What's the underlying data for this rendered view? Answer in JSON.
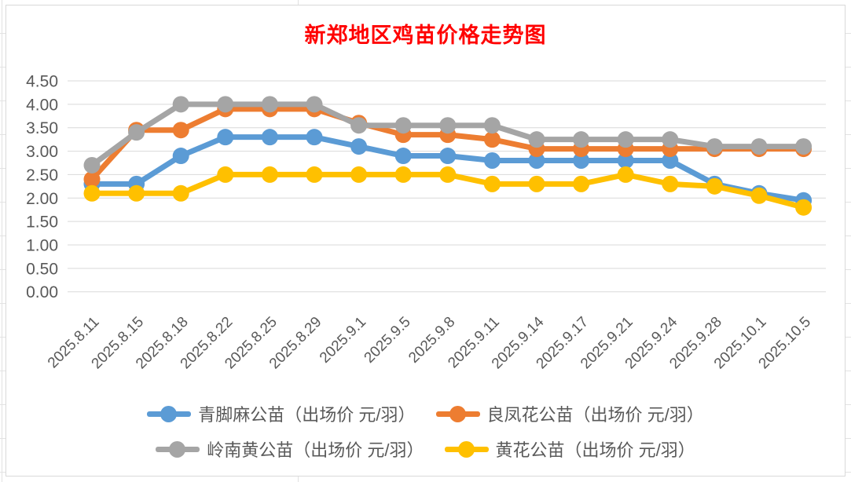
{
  "chart_data": {
    "type": "line",
    "title": "新郑地区鸡苗价格走势图",
    "title_color": "#FF0000",
    "categories": [
      "2025.8.11",
      "2025.8.15",
      "2025.8.18",
      "2025.8.22",
      "2025.8.25",
      "2025.8.29",
      "2025.9.1",
      "2025.9.5",
      "2025.9.8",
      "2025.9.11",
      "2025.9.14",
      "2025.9.17",
      "2025.9.21",
      "2025.9.24",
      "2025.9.28",
      "2025.10.1",
      "2025.10.5"
    ],
    "series": [
      {
        "name": "青脚麻公苗（出场价 元/羽）",
        "color": "#5B9BD5",
        "values": [
          2.3,
          2.3,
          2.9,
          3.3,
          3.3,
          3.3,
          3.1,
          2.9,
          2.9,
          2.8,
          2.8,
          2.8,
          2.8,
          2.8,
          2.3,
          2.1,
          1.95
        ]
      },
      {
        "name": "良凤花公苗（出场价 元/羽）",
        "color": "#ED7D31",
        "values": [
          2.4,
          3.45,
          3.45,
          3.9,
          3.9,
          3.9,
          3.6,
          3.35,
          3.35,
          3.25,
          3.05,
          3.05,
          3.05,
          3.05,
          3.05,
          3.05,
          3.05
        ]
      },
      {
        "name": "岭南黄公苗（出场价 元/羽）",
        "color": "#A5A5A5",
        "values": [
          2.7,
          3.4,
          4.0,
          4.0,
          4.0,
          4.0,
          3.55,
          3.55,
          3.55,
          3.55,
          3.25,
          3.25,
          3.25,
          3.25,
          3.1,
          3.1,
          3.1
        ]
      },
      {
        "name": "黄花公苗（出场价 元/羽）",
        "color": "#FFC000",
        "values": [
          2.1,
          2.1,
          2.1,
          2.5,
          2.5,
          2.5,
          2.5,
          2.5,
          2.5,
          2.3,
          2.3,
          2.3,
          2.5,
          2.3,
          2.25,
          2.05,
          1.8
        ]
      }
    ],
    "ylim": [
      0,
      4.5
    ],
    "ytick_step": 0.5,
    "yticks": [
      "4.50",
      "4.00",
      "3.50",
      "3.00",
      "2.50",
      "2.00",
      "1.50",
      "1.00",
      "0.50",
      "0.00"
    ],
    "xlabel": "",
    "ylabel": "",
    "grid": true,
    "gridline_color": "#D9D9D9",
    "axis_label_color": "#595959",
    "legend_position": "bottom"
  }
}
